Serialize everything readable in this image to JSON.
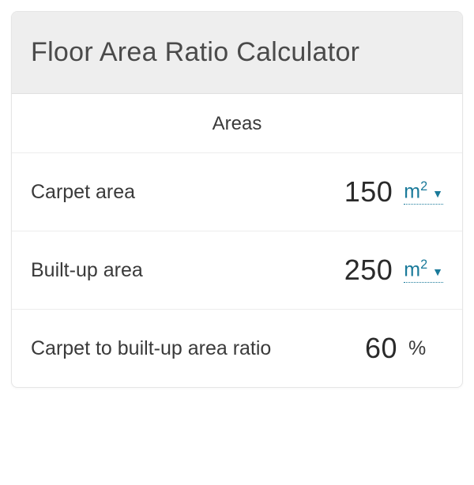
{
  "header": {
    "title": "Floor Area Ratio Calculator"
  },
  "section": {
    "label": "Areas"
  },
  "colors": {
    "header_bg": "#eeeeee",
    "card_border": "#e5e5e5",
    "row_border": "#ececec",
    "title_text": "#4a4a4a",
    "label_text": "#3a3a3a",
    "value_text": "#2a2a2a",
    "link": "#1a7a9a",
    "background": "#ffffff"
  },
  "typography": {
    "title_size": 34,
    "section_size": 24,
    "label_size": 25,
    "value_size": 36,
    "unit_size": 25
  },
  "rows": [
    {
      "label": "Carpet area",
      "value": "150",
      "unit": "m²",
      "unit_selectable": true
    },
    {
      "label": "Built-up area",
      "value": "250",
      "unit": "m²",
      "unit_selectable": true
    },
    {
      "label": "Carpet to built-up area ratio",
      "value": "60",
      "unit": "%",
      "unit_selectable": false
    }
  ]
}
